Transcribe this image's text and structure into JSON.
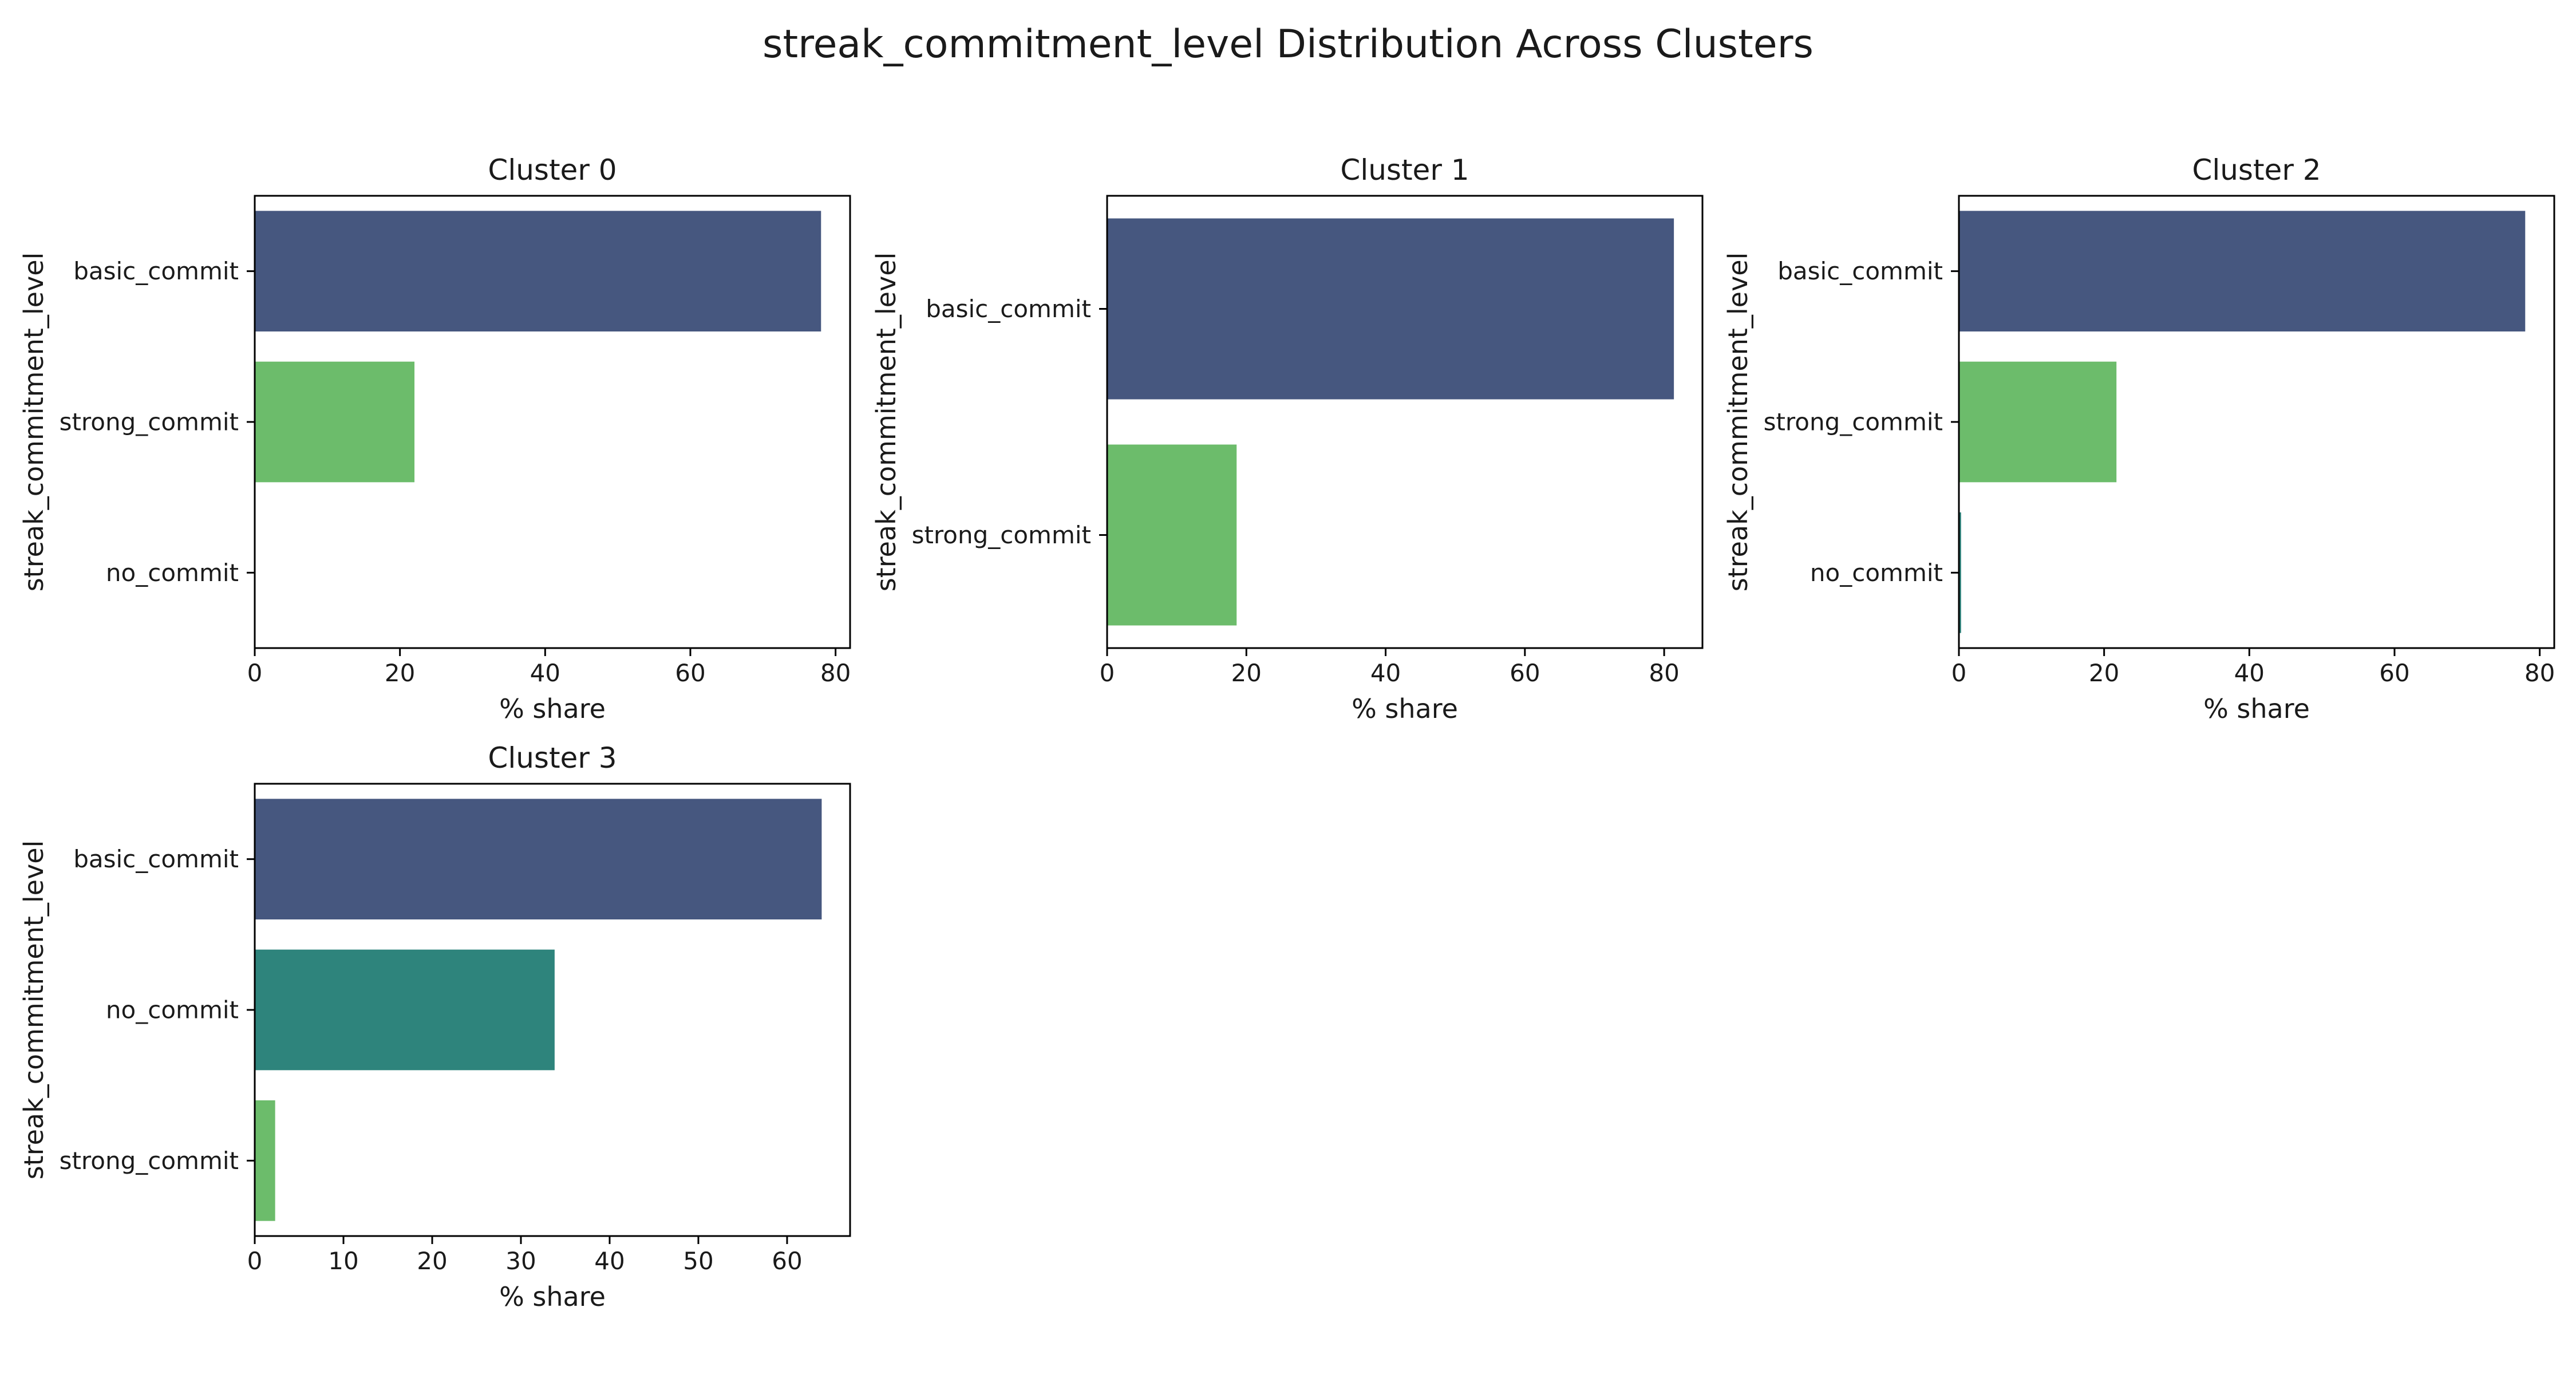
{
  "chart_data": {
    "type": "bar",
    "orientation": "horizontal",
    "title": "streak_commitment_level Distribution Across Clusters",
    "xlabel": "% share",
    "ylabel": "streak_commitment_level",
    "colors": {
      "basic_commit": "#46577f",
      "no_commit": "#2e847c",
      "strong_commit": "#6cbc6b"
    },
    "panels": [
      {
        "title": "Cluster 0",
        "categories": [
          "basic_commit",
          "strong_commit",
          "no_commit"
        ],
        "values": [
          78.0,
          22.0,
          0.0
        ],
        "xlim": [
          0,
          82
        ],
        "xticks": [
          0,
          20,
          40,
          60,
          80
        ]
      },
      {
        "title": "Cluster 1",
        "categories": [
          "basic_commit",
          "strong_commit"
        ],
        "values": [
          81.4,
          18.6
        ],
        "xlim": [
          0,
          85.5
        ],
        "xticks": [
          0,
          20,
          40,
          60,
          80
        ]
      },
      {
        "title": "Cluster 2",
        "categories": [
          "basic_commit",
          "strong_commit",
          "no_commit"
        ],
        "values": [
          78.0,
          21.7,
          0.3
        ],
        "xlim": [
          0,
          82
        ],
        "xticks": [
          0,
          20,
          40,
          60,
          80
        ]
      },
      {
        "title": "Cluster 3",
        "categories": [
          "basic_commit",
          "no_commit",
          "strong_commit"
        ],
        "values": [
          63.9,
          33.8,
          2.3
        ],
        "xlim": [
          0,
          67.1
        ],
        "xticks": [
          0,
          10,
          20,
          30,
          40,
          50,
          60
        ]
      }
    ]
  }
}
